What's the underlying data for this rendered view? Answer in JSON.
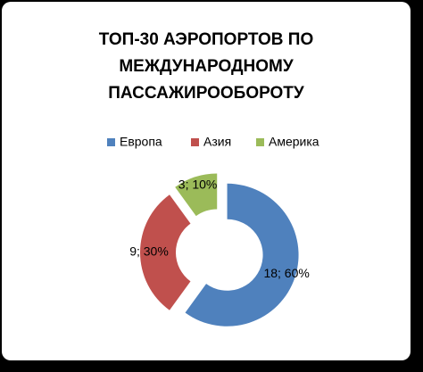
{
  "chart_data": {
    "type": "donut",
    "title": [
      "ТОП-30 АЭРОПОРТОВ ПО",
      "МЕЖДУНАРОДНОМУ",
      "ПАССАЖИРООБОРОТУ"
    ],
    "categories": [
      "Европа",
      "Азия",
      "Америка"
    ],
    "values": [
      18,
      9,
      3
    ],
    "value_labels": [
      "18; 60%",
      "9; 30%",
      "3; 10%"
    ],
    "colors": [
      "#4f81bd",
      "#c0504d",
      "#9bbb59"
    ],
    "legend": "top"
  }
}
